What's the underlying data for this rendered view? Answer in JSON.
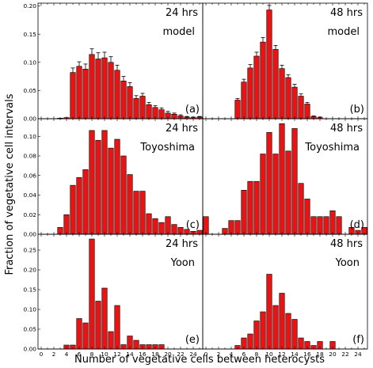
{
  "figure": {
    "ylabel": "Fraction of vegetative cell intervals",
    "xlabel": "Number of vegetative cells between heterocysts",
    "colors": {
      "bar": "#ee1111",
      "edge": "#000000",
      "error": "#000000"
    }
  },
  "chart_data": [
    {
      "type": "bar",
      "panel": "(a)",
      "time": "24 hrs",
      "source": "model",
      "xlim": [
        0,
        25
      ],
      "ylim": [
        0,
        0.205
      ],
      "xticks": [
        0,
        2,
        4,
        6,
        8,
        10,
        12,
        14,
        16,
        18,
        20,
        22,
        24
      ],
      "yticks": [
        0.0,
        0.05,
        0.1,
        0.15,
        0.2
      ],
      "ytick_labels": [
        "0.00",
        "0.05",
        "0.10",
        "0.15",
        "0.20"
      ],
      "x": [
        3,
        4,
        5,
        6,
        7,
        8,
        9,
        10,
        11,
        12,
        13,
        14,
        15,
        16,
        17,
        18,
        19,
        20,
        21,
        22,
        23,
        24,
        25
      ],
      "values": [
        0.001,
        0.002,
        0.082,
        0.093,
        0.088,
        0.114,
        0.106,
        0.108,
        0.1,
        0.086,
        0.067,
        0.057,
        0.036,
        0.04,
        0.025,
        0.02,
        0.016,
        0.01,
        0.008,
        0.005,
        0.003,
        0.002,
        0.003
      ],
      "errors": [
        0,
        0,
        0.008,
        0.008,
        0.009,
        0.01,
        0.011,
        0.01,
        0.01,
        0.009,
        0.008,
        0.007,
        0.005,
        0.005,
        0.004,
        0.003,
        0.003,
        0.003,
        0.002,
        0.002,
        0.001,
        0.001,
        0.001
      ]
    },
    {
      "type": "bar",
      "panel": "(b)",
      "time": "48 hrs",
      "source": "model",
      "xlim": [
        0,
        25
      ],
      "ylim": [
        0,
        0.205
      ],
      "xticks": [
        0,
        2,
        4,
        6,
        8,
        10,
        12,
        14,
        16,
        18,
        20,
        22,
        24
      ],
      "x": [
        5,
        6,
        7,
        8,
        9,
        10,
        11,
        12,
        13,
        14,
        15,
        16,
        17,
        18
      ],
      "values": [
        0.033,
        0.065,
        0.09,
        0.111,
        0.136,
        0.193,
        0.123,
        0.089,
        0.073,
        0.056,
        0.04,
        0.026,
        0.004,
        0.002
      ],
      "errors": [
        0.003,
        0.005,
        0.006,
        0.007,
        0.008,
        0.008,
        0.007,
        0.006,
        0.005,
        0.005,
        0.004,
        0.003,
        0.001,
        0.001
      ]
    },
    {
      "type": "bar",
      "panel": "(c)",
      "time": "24 hrs",
      "source": "Toyoshima",
      "xlim": [
        0,
        25
      ],
      "ylim": [
        0,
        0.118
      ],
      "xticks": [
        0,
        2,
        4,
        6,
        8,
        10,
        12,
        14,
        16,
        18,
        20,
        22,
        24
      ],
      "yticks": [
        0.0,
        0.02,
        0.04,
        0.06,
        0.08,
        0.1
      ],
      "ytick_labels": [
        "0.00",
        "0.02",
        "0.04",
        "0.06",
        "0.08",
        "0.10"
      ],
      "x": [
        3,
        4,
        5,
        6,
        7,
        8,
        9,
        10,
        11,
        12,
        13,
        14,
        15,
        16,
        17,
        18,
        19,
        20,
        21,
        22,
        23,
        24,
        25
      ],
      "values": [
        0.007,
        0.02,
        0.05,
        0.058,
        0.066,
        0.106,
        0.096,
        0.106,
        0.088,
        0.097,
        0.08,
        0.061,
        0.044,
        0.044,
        0.021,
        0.016,
        0.012,
        0.018,
        0.01,
        0.007,
        0.005,
        0.003,
        0.004
      ]
    },
    {
      "type": "bar",
      "panel": "(d)",
      "time": "48 hrs",
      "source": "Toyoshima",
      "xlim": [
        0,
        25
      ],
      "ylim": [
        0,
        0.118
      ],
      "xticks": [
        0,
        2,
        4,
        6,
        8,
        10,
        12,
        14,
        16,
        18,
        20,
        22,
        24
      ],
      "x": [
        0,
        3,
        4,
        5,
        6,
        7,
        8,
        9,
        10,
        11,
        12,
        13,
        14,
        15,
        16,
        17,
        18,
        19,
        20,
        21,
        22,
        23,
        24,
        25
      ],
      "values": [
        0.018,
        0.006,
        0.014,
        0.014,
        0.045,
        0.054,
        0.054,
        0.082,
        0.104,
        0.082,
        0.113,
        0.085,
        0.108,
        0.052,
        0.036,
        0.018,
        0.018,
        0.018,
        0.024,
        0.018,
        0.0,
        0.007,
        0.004,
        0.007
      ]
    },
    {
      "type": "bar",
      "panel": "(e)",
      "time": "24 hrs",
      "source": "Yoon",
      "xlim": [
        0,
        25
      ],
      "ylim": [
        0,
        0.29
      ],
      "xticks": [
        0,
        2,
        4,
        6,
        8,
        10,
        12,
        14,
        16,
        18,
        20,
        22,
        24
      ],
      "yticks": [
        0.0,
        0.05,
        0.1,
        0.15,
        0.2,
        0.25
      ],
      "ytick_labels": [
        "0.00",
        "0.05",
        "0.10",
        "0.15",
        "0.20",
        "0.25"
      ],
      "x": [
        4,
        5,
        6,
        7,
        8,
        9,
        10,
        11,
        12,
        13,
        14,
        15,
        16,
        17,
        18,
        19
      ],
      "values": [
        0.01,
        0.01,
        0.077,
        0.066,
        0.278,
        0.121,
        0.154,
        0.044,
        0.11,
        0.011,
        0.033,
        0.022,
        0.011,
        0.011,
        0.011,
        0.011
      ]
    },
    {
      "type": "bar",
      "panel": "(f)",
      "time": "48 hrs",
      "source": "Yoon",
      "xlim": [
        0,
        25
      ],
      "ylim": [
        0,
        0.29
      ],
      "xticks": [
        0,
        2,
        4,
        6,
        8,
        10,
        12,
        14,
        16,
        18,
        20,
        22,
        24
      ],
      "x": [
        5,
        6,
        7,
        8,
        9,
        10,
        11,
        12,
        13,
        14,
        15,
        16,
        17,
        18,
        20
      ],
      "values": [
        0.009,
        0.028,
        0.038,
        0.071,
        0.094,
        0.189,
        0.11,
        0.141,
        0.09,
        0.075,
        0.028,
        0.019,
        0.009,
        0.019,
        0.019
      ]
    }
  ]
}
